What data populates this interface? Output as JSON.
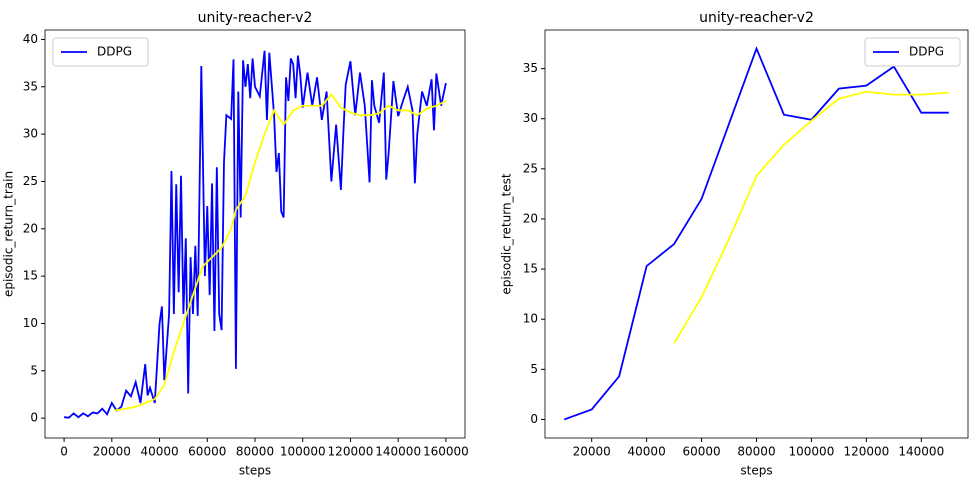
{
  "chart_data": [
    {
      "type": "line",
      "title": "unity-reacher-v2",
      "xlabel": "steps",
      "ylabel": "episodic_return_train",
      "legend": "upper left",
      "xlim": [
        -8000,
        168000
      ],
      "ylim": [
        -2.1,
        41.0
      ],
      "xticks": [
        0,
        20000,
        40000,
        60000,
        80000,
        100000,
        120000,
        140000,
        160000
      ],
      "yticks": [
        0,
        5,
        10,
        15,
        20,
        25,
        30,
        35,
        40
      ],
      "series": [
        {
          "name": "DDPG",
          "color": "#0000ff",
          "x": [
            0,
            2000,
            4000,
            6000,
            8000,
            10000,
            12000,
            14000,
            16000,
            18000,
            20000,
            22000,
            24000,
            26000,
            28000,
            30000,
            32000,
            34000,
            35000,
            36000,
            38000,
            40000,
            41000,
            42000,
            44000,
            45000,
            46000,
            47000,
            48000,
            49000,
            50000,
            51000,
            52000,
            53000,
            54000,
            55000,
            56000,
            57500,
            59000,
            60000,
            61000,
            62000,
            63000,
            64000,
            65000,
            66000,
            67000,
            68000,
            70000,
            71000,
            72000,
            73000,
            74000,
            75000,
            76000,
            77000,
            78000,
            79000,
            80000,
            82000,
            84000,
            85000,
            86000,
            88000,
            89000,
            90000,
            91000,
            92000,
            93000,
            94000,
            95000,
            96000,
            97000,
            98000,
            99000,
            100000,
            102000,
            104000,
            106000,
            108000,
            110000,
            112000,
            114000,
            116000,
            117000,
            118000,
            120000,
            122000,
            124000,
            126000,
            128000,
            129000,
            130000,
            132000,
            134000,
            135000,
            136000,
            138000,
            140000,
            142000,
            144000,
            146000,
            147000,
            148000,
            150000,
            152000,
            154000,
            155000,
            156000,
            158000,
            160000
          ],
          "values": [
            0.1,
            0.05,
            0.5,
            0.1,
            0.5,
            0.2,
            0.6,
            0.5,
            1.0,
            0.4,
            1.6,
            0.8,
            1.2,
            2.9,
            2.3,
            3.8,
            1.6,
            5.7,
            2.4,
            3.2,
            1.6,
            10,
            11.8,
            4,
            11,
            26.1,
            11,
            24.7,
            13.3,
            25.6,
            11,
            19,
            2.6,
            17,
            11,
            18.2,
            10.8,
            37.2,
            15,
            22.4,
            13,
            24.8,
            9.2,
            26.5,
            11,
            9.3,
            27,
            32,
            31.6,
            37.9,
            5.2,
            34.5,
            21.2,
            37.8,
            35,
            37.4,
            33.8,
            38,
            35,
            34,
            38.8,
            31.5,
            38.6,
            32,
            26,
            28,
            21.8,
            21.2,
            36,
            33.5,
            38,
            37.4,
            33.8,
            38.3,
            36.2,
            32.8,
            36.5,
            33,
            36,
            31.5,
            34.5,
            25,
            31,
            24.1,
            30,
            35.2,
            37.7,
            32,
            36.5,
            33,
            24.9,
            35.7,
            33,
            31.2,
            36.5,
            25.2,
            28,
            35.6,
            31.9,
            33.5,
            35,
            32.5,
            24.8,
            30,
            34.5,
            33,
            35.8,
            30.4,
            36.4,
            33,
            35.4
          ]
        },
        {
          "color": "#ffff00",
          "x": [
            21000,
            26000,
            30000,
            34000,
            38000,
            42000,
            46000,
            50000,
            54000,
            58000,
            62000,
            66000,
            70000,
            72000,
            76000,
            80000,
            84000,
            88000,
            92000,
            96000,
            100000,
            104000,
            108000,
            112000,
            116000,
            120000,
            124000,
            128000,
            132000,
            136000,
            140000,
            144000,
            148000,
            152000,
            156000,
            160000
          ],
          "values": [
            0.8,
            1.0,
            1.2,
            1.6,
            2.0,
            3.5,
            7,
            10,
            13,
            16,
            17,
            18,
            20,
            22,
            23.5,
            27,
            30,
            32.5,
            31,
            32.5,
            33,
            33,
            33,
            34.2,
            32.8,
            32.3,
            32,
            32,
            32.2,
            33,
            32.5,
            32.5,
            32,
            32.7,
            33,
            33.5
          ]
        }
      ]
    },
    {
      "type": "line",
      "title": "unity-reacher-v2",
      "xlabel": "steps",
      "ylabel": "episodic_return_test",
      "legend": "upper right",
      "xlim": [
        3000,
        157000
      ],
      "ylim": [
        -1.85,
        38.85
      ],
      "xticks": [
        20000,
        40000,
        60000,
        80000,
        100000,
        120000,
        140000
      ],
      "yticks": [
        0,
        5,
        10,
        15,
        20,
        25,
        30,
        35
      ],
      "series": [
        {
          "name": "DDPG",
          "color": "#0000ff",
          "x": [
            10000,
            20000,
            30000,
            40000,
            50000,
            60000,
            70000,
            80000,
            90000,
            100000,
            110000,
            120000,
            130000,
            140000,
            150000
          ],
          "values": [
            0,
            1,
            4.3,
            15.3,
            17.5,
            22,
            29.5,
            37,
            30.4,
            29.9,
            33,
            33.3,
            35.2,
            30.6,
            30.6
          ]
        },
        {
          "color": "#ffff00",
          "x": [
            50000,
            60000,
            70000,
            80000,
            90000,
            100000,
            110000,
            120000,
            130000,
            140000,
            150000
          ],
          "values": [
            7.6,
            12.2,
            18,
            24.3,
            27.4,
            29.8,
            32,
            32.7,
            32.4,
            32.4,
            32.6
          ]
        }
      ]
    }
  ]
}
